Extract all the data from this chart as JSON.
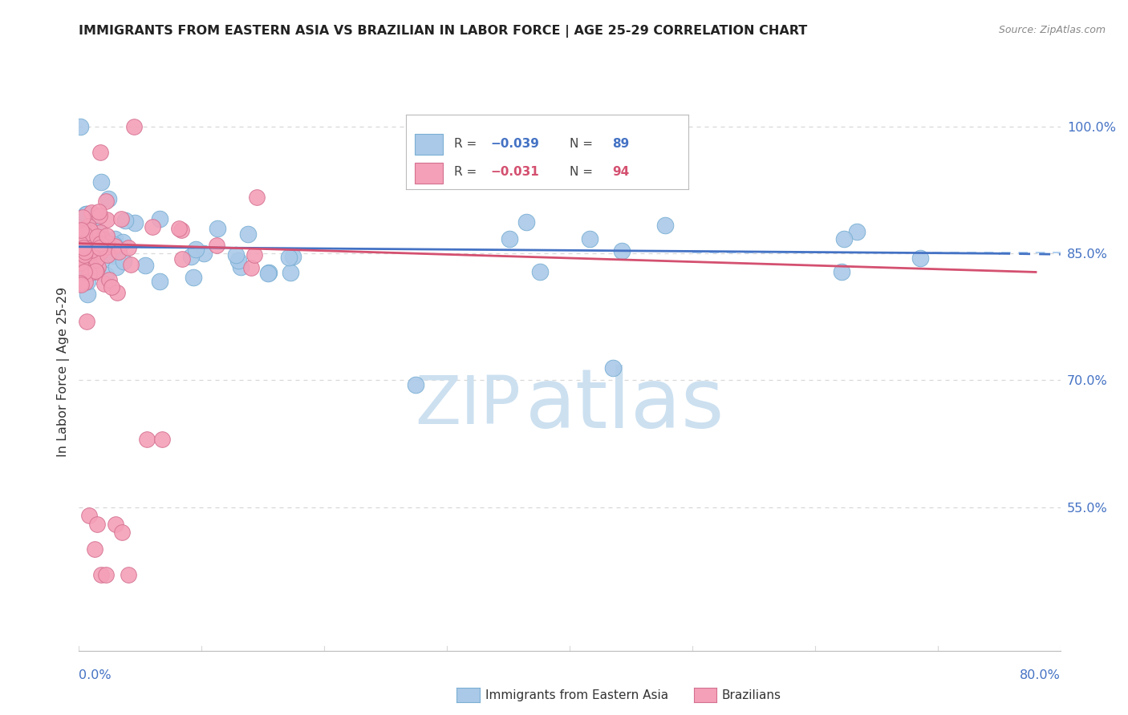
{
  "title": "IMMIGRANTS FROM EASTERN ASIA VS BRAZILIAN IN LABOR FORCE | AGE 25-29 CORRELATION CHART",
  "source": "Source: ZipAtlas.com",
  "ylabel": "In Labor Force | Age 25-29",
  "ytick_labels": [
    "100.0%",
    "85.0%",
    "70.0%",
    "55.0%"
  ],
  "ytick_values": [
    1.0,
    0.85,
    0.7,
    0.55
  ],
  "xlim": [
    0.0,
    0.8
  ],
  "ylim": [
    0.38,
    1.04
  ],
  "legend_blue_label": "Immigrants from Eastern Asia",
  "legend_pink_label": "Brazilians",
  "legend_blue_R": "-0.039",
  "legend_blue_N": "89",
  "legend_pink_R": "-0.031",
  "legend_pink_N": "94",
  "blue_color": "#aac9e8",
  "blue_line_color": "#4472c4",
  "pink_color": "#f4a0b8",
  "pink_line_color": "#d45070",
  "blue_edge_color": "#7aafd4",
  "pink_edge_color": "#d47090",
  "watermark_color": "#cce0f0",
  "grid_color": "#d8d8d8",
  "background_color": "#ffffff",
  "title_color": "#222222",
  "source_color": "#888888",
  "axis_label_color": "#333333",
  "right_tick_color": "#4472c4",
  "bottom_tick_color": "#4472c4"
}
